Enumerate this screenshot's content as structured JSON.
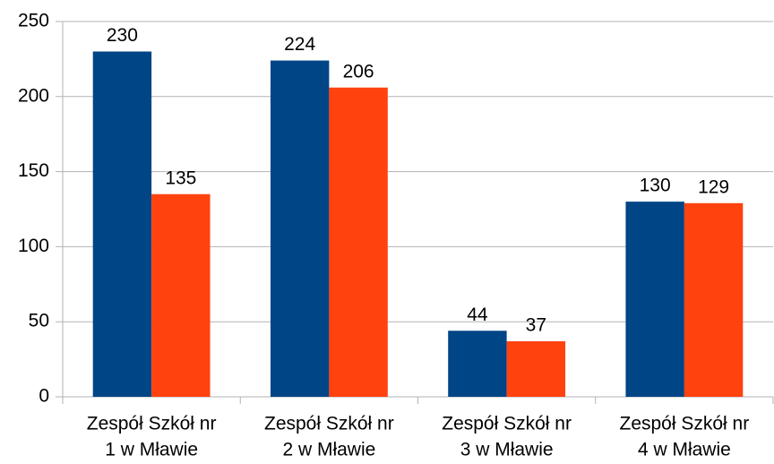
{
  "chart_data": {
    "type": "bar",
    "categories": [
      [
        "Zespół Szkół nr",
        "1 w Mławie"
      ],
      [
        "Zespół Szkół nr",
        "2 w Mławie"
      ],
      [
        "Zespół Szkół nr",
        "3 w Mławie"
      ],
      [
        "Zespół Szkół nr",
        "4 w Mławie"
      ]
    ],
    "series": [
      {
        "color": "#004586",
        "values": [
          230,
          224,
          44,
          130
        ]
      },
      {
        "color": "#ff420e",
        "values": [
          135,
          206,
          37,
          129
        ]
      }
    ],
    "ylim": [
      0,
      250
    ],
    "yticks": [
      0,
      50,
      100,
      150,
      200,
      250
    ],
    "grid": true
  }
}
